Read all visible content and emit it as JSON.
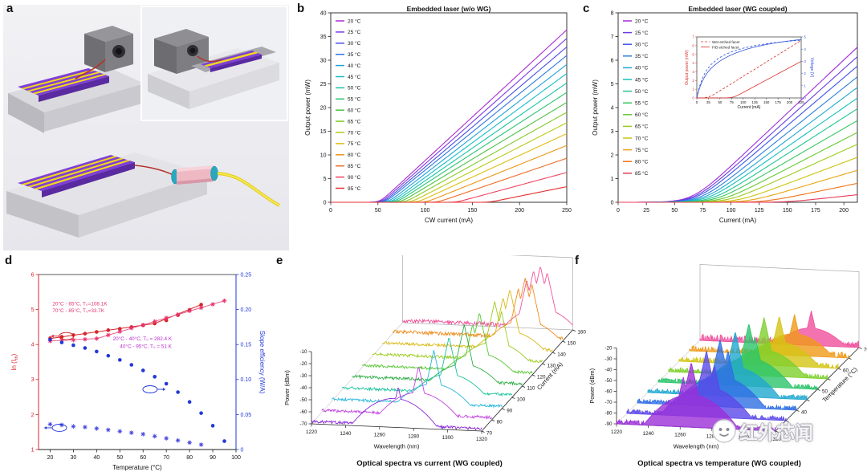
{
  "panels": {
    "a": {
      "label": "a",
      "description": "3D schematic: embedded laser chips, photodetector blocks and lensed-fiber coupling"
    },
    "b": {
      "label": "b",
      "title": "Embedded laser (w/o WG)"
    },
    "c": {
      "label": "c",
      "title": "Embedded laser (WG coupled)"
    },
    "d": {
      "label": "d"
    },
    "e": {
      "label": "e",
      "caption": "Optical spectra vs current (WG coupled)"
    },
    "f": {
      "label": "f",
      "caption": "Optical spectra vs temperature (WG coupled)"
    }
  },
  "watermark": {
    "text": "红外芯闻"
  },
  "chart_data": [
    {
      "panel": "b",
      "type": "line",
      "title": "Embedded laser (w/o WG)",
      "xlabel": "CW current (mA)",
      "ylabel": "Output power (mW)",
      "xlim": [
        0,
        250
      ],
      "ylim": [
        0,
        40
      ],
      "xticks": [
        0,
        50,
        100,
        150,
        200,
        250
      ],
      "yticks": [
        0,
        5,
        10,
        15,
        20,
        25,
        30,
        35,
        40
      ],
      "legend_position": "top-left",
      "knee_w": 3,
      "series": [
        {
          "name": "20 °C",
          "color": "#ab2ad2",
          "threshold_mA": 52,
          "p_at_max_mW": 36.4
        },
        {
          "name": "25 °C",
          "color": "#7c3ce2",
          "threshold_mA": 54,
          "p_at_max_mW": 34.6
        },
        {
          "name": "30 °C",
          "color": "#4a50e6",
          "threshold_mA": 56,
          "p_at_max_mW": 32.8
        },
        {
          "name": "35 °C",
          "color": "#2e77e0",
          "threshold_mA": 58,
          "p_at_max_mW": 31.0
        },
        {
          "name": "40 °C",
          "color": "#20a0d6",
          "threshold_mA": 61,
          "p_at_max_mW": 29.1
        },
        {
          "name": "45 °C",
          "color": "#18bcc8",
          "threshold_mA": 64,
          "p_at_max_mW": 27.2
        },
        {
          "name": "50 °C",
          "color": "#1ac4a6",
          "threshold_mA": 67,
          "p_at_max_mW": 25.2
        },
        {
          "name": "55 °C",
          "color": "#2cc474",
          "threshold_mA": 70,
          "p_at_max_mW": 23.2
        },
        {
          "name": "60 °C",
          "color": "#4cc248",
          "threshold_mA": 74,
          "p_at_max_mW": 21.1
        },
        {
          "name": "65 °C",
          "color": "#84ca2a",
          "threshold_mA": 79,
          "p_at_max_mW": 19.0
        },
        {
          "name": "70 °C",
          "color": "#b8ca16",
          "threshold_mA": 85,
          "p_at_max_mW": 16.8
        },
        {
          "name": "75 °C",
          "color": "#e0bc10",
          "threshold_mA": 92,
          "p_at_max_mW": 14.5
        },
        {
          "name": "80 °C",
          "color": "#eb9616",
          "threshold_mA": 101,
          "p_at_max_mW": 12.0
        },
        {
          "name": "85 °C",
          "color": "#f06e28",
          "threshold_mA": 113,
          "p_at_max_mW": 9.3
        },
        {
          "name": "90 °C",
          "color": "#ee4560",
          "threshold_mA": 133,
          "p_at_max_mW": 6.3
        },
        {
          "name": "95 °C",
          "color": "#e62e2e",
          "threshold_mA": 168,
          "p_at_max_mW": 3.3
        }
      ]
    },
    {
      "panel": "c",
      "type": "line",
      "title": "Embedded laser (WG coupled)",
      "xlabel": "Current (mA)",
      "ylabel": "Output power (mW)",
      "xlim": [
        0,
        212
      ],
      "ylim": [
        0,
        8
      ],
      "xticks": [
        0,
        25,
        50,
        75,
        100,
        125,
        150,
        175,
        200
      ],
      "yticks": [
        0,
        1,
        2,
        3,
        4,
        5,
        6,
        7,
        8
      ],
      "legend_position": "top-left",
      "knee_w": 9,
      "series": [
        {
          "name": "20 °C",
          "color": "#a02ad8",
          "threshold_mA": 66,
          "p_at_max_mW": 6.55
        },
        {
          "name": "25 °C",
          "color": "#6a3ce4",
          "threshold_mA": 68,
          "p_at_max_mW": 6.15
        },
        {
          "name": "30 °C",
          "color": "#3e55e8",
          "threshold_mA": 70,
          "p_at_max_mW": 5.75
        },
        {
          "name": "35 °C",
          "color": "#2a80dc",
          "threshold_mA": 73,
          "p_at_max_mW": 5.3
        },
        {
          "name": "40 °C",
          "color": "#1ea8d0",
          "threshold_mA": 76,
          "p_at_max_mW": 4.85
        },
        {
          "name": "45 °C",
          "color": "#17c0bc",
          "threshold_mA": 79,
          "p_at_max_mW": 4.4
        },
        {
          "name": "50 °C",
          "color": "#20c492",
          "threshold_mA": 83,
          "p_at_max_mW": 3.95
        },
        {
          "name": "55 °C",
          "color": "#38c65e",
          "threshold_mA": 87,
          "p_at_max_mW": 3.45
        },
        {
          "name": "60 °C",
          "color": "#64ca34",
          "threshold_mA": 92,
          "p_at_max_mW": 2.95
        },
        {
          "name": "65 °C",
          "color": "#9ccc1c",
          "threshold_mA": 98,
          "p_at_max_mW": 2.45
        },
        {
          "name": "70 °C",
          "color": "#ccc410",
          "threshold_mA": 106,
          "p_at_max_mW": 1.9
        },
        {
          "name": "75 °C",
          "color": "#e8a40e",
          "threshold_mA": 116,
          "p_at_max_mW": 1.35
        },
        {
          "name": "80 °C",
          "color": "#ee7418",
          "threshold_mA": 130,
          "p_at_max_mW": 0.8
        },
        {
          "name": "85 °C",
          "color": "#e83a58",
          "threshold_mA": 150,
          "p_at_max_mW": 0.32
        }
      ]
    },
    {
      "panel": "c_inset",
      "type": "line",
      "xlabel": "Current (mA)",
      "ylabel_left": "Output power (mW)",
      "ylabel_right": "Voltage (V)",
      "xlim": [
        0,
        225
      ],
      "ylim_left": [
        0,
        7
      ],
      "ylim_right": [
        0,
        5
      ],
      "power_color": "#d8302c",
      "voltage_color": "#3352d8",
      "legend": [
        {
          "label": "Wet etched facet",
          "style": "dashed"
        },
        {
          "label": "FIB etched facet",
          "style": "solid"
        }
      ],
      "curves": [
        {
          "name": "Wet etched facet power",
          "axis": "left",
          "style": "dashed",
          "threshold_mA": 25,
          "p_at_225_mW": 6.6
        },
        {
          "name": "FIB etched facet power",
          "axis": "left",
          "style": "solid",
          "threshold_mA": 78,
          "p_at_225_mW": 4.2
        },
        {
          "name": "Wet etched facet voltage",
          "axis": "right",
          "style": "dashed",
          "v_sat": 4.6,
          "i_half": 45
        },
        {
          "name": "FIB etched facet voltage",
          "axis": "right",
          "style": "solid",
          "v_sat": 5.1,
          "i_half": 70
        }
      ]
    },
    {
      "panel": "d",
      "type": "scatter",
      "xlabel": "Temperature (°C)",
      "ylabel_left": "ln (Ith)",
      "ylabel_right": "Slope efficiency (W/A)",
      "xlim": [
        15,
        100
      ],
      "ylim_left": [
        1,
        6
      ],
      "ylim_right": [
        0,
        0.25
      ],
      "xticks": [
        20,
        30,
        40,
        50,
        60,
        70,
        80,
        90,
        100
      ],
      "left_ticks": [
        1,
        2,
        3,
        4,
        5,
        6
      ],
      "right_ticks": [
        0,
        0.05,
        0.1,
        0.15,
        0.2,
        0.25
      ],
      "right_tick_labels": [
        "0",
        "0.05",
        "0.10",
        "0.15",
        "0.20",
        "0.25"
      ],
      "left_color": "#d8242c",
      "right_color": "#2238d8",
      "ln_circles": {
        "color": "#d42428",
        "temps": [
          20,
          25,
          30,
          35,
          40,
          45,
          50,
          55,
          60,
          65,
          70,
          75,
          80,
          85
        ],
        "values": [
          4.18,
          4.22,
          4.27,
          4.31,
          4.36,
          4.41,
          4.45,
          4.5,
          4.55,
          4.6,
          4.69,
          4.84,
          4.99,
          5.14
        ]
      },
      "ln_stars": {
        "color": "#e8356e",
        "temps": [
          20,
          25,
          30,
          35,
          40,
          45,
          50,
          55,
          60,
          65,
          70,
          75,
          80,
          85,
          90,
          95
        ],
        "values": [
          4.1,
          4.12,
          4.13,
          4.15,
          4.17,
          4.27,
          4.37,
          4.47,
          4.56,
          4.66,
          4.76,
          4.86,
          4.96,
          5.05,
          5.15,
          5.25
        ]
      },
      "se_circles": {
        "color": "#2238d8",
        "temps": [
          20,
          25,
          30,
          35,
          40,
          45,
          50,
          55,
          60,
          65,
          70,
          75,
          80,
          85,
          90,
          95
        ],
        "values": [
          0.157,
          0.153,
          0.149,
          0.145,
          0.14,
          0.134,
          0.128,
          0.121,
          0.113,
          0.104,
          0.094,
          0.082,
          0.068,
          0.052,
          0.034,
          0.012
        ]
      },
      "se_stars": {
        "color": "#4848e0",
        "temps": [
          20,
          25,
          30,
          35,
          40,
          45,
          50,
          55,
          60,
          65,
          70,
          75,
          80,
          85
        ],
        "values": [
          0.036,
          0.035,
          0.033,
          0.032,
          0.03,
          0.028,
          0.026,
          0.024,
          0.022,
          0.019,
          0.016,
          0.013,
          0.01,
          0.007
        ]
      },
      "trend_circles": {
        "color": "#d42428",
        "points": [
          [
            20,
            4.17
          ],
          [
            65,
            4.6
          ],
          [
            85,
            5.14
          ]
        ]
      },
      "trend_stars": {
        "color": "#e8608c",
        "points": [
          [
            20,
            4.1
          ],
          [
            40,
            4.17
          ],
          [
            95,
            5.25
          ]
        ]
      },
      "annotations": [
        {
          "text": "20°C - 65°C, T₀=108.1K",
          "x": 21,
          "y": 5.12,
          "color": "#e8356e"
        },
        {
          "text": "70°C - 85°C, T₀=33.7K",
          "x": 21,
          "y": 4.92,
          "color": "#e8356e"
        },
        {
          "text": "20°C - 40°C, T₀ = 282.4 K",
          "x": 47,
          "y": 4.12,
          "color": "#bf2ad0"
        },
        {
          "text": "40°C - 95°C, T₀ = 51 K",
          "x": 50,
          "y": 3.9,
          "color": "#bf2ad0"
        }
      ],
      "indicators": [
        {
          "x": 27,
          "y": 4.24,
          "color": "#d42428",
          "dir": -1
        },
        {
          "x": 63,
          "y": 2.72,
          "color": "#2238d8",
          "dir": 1
        },
        {
          "x": 24,
          "y": 1.62,
          "color": "#2238d8",
          "dir": -1
        }
      ]
    },
    {
      "panel": "e",
      "type": "line",
      "subtype": "waterfall3d",
      "caption": "Optical spectra vs current (WG coupled)",
      "xlabel": "Wavelength (nm)",
      "ylabel": "Power (dBm)",
      "zlabel": "Current (mA)",
      "x_range": [
        1220,
        1320
      ],
      "x_ticks": [
        1220,
        1240,
        1260,
        1280,
        1300,
        1320
      ],
      "y_ticks": [
        -70,
        -60,
        -50,
        -40,
        -30,
        -20,
        -10
      ],
      "noise_floor_dbm": -68,
      "series": [
        {
          "current": 70,
          "color": "#8c2ad8",
          "hump": {
            "nm": 1269,
            "dbm": -46
          },
          "peaks": [
            {
              "nm": 1271,
              "dbm": -36
            }
          ]
        },
        {
          "current": 80,
          "color": "#c244e0",
          "hump": {
            "nm": 1277,
            "dbm": -50
          },
          "peaks": [
            {
              "nm": 1277,
              "dbm": -28
            }
          ]
        },
        {
          "current": 90,
          "color": "#26b6dc",
          "hump": {
            "nm": 1280,
            "dbm": -52
          },
          "peaks": [
            {
              "nm": 1280,
              "dbm": -24
            }
          ]
        },
        {
          "current": 100,
          "color": "#1cc49c",
          "hump": {
            "nm": 1283,
            "dbm": -53
          },
          "peaks": [
            {
              "nm": 1283,
              "dbm": -22
            }
          ]
        },
        {
          "current": 110,
          "color": "#2fae46",
          "hump": {
            "nm": 1286,
            "dbm": -54
          },
          "peaks": [
            {
              "nm": 1286,
              "dbm": -21
            }
          ]
        },
        {
          "current": 120,
          "color": "#56c632",
          "hump": {
            "nm": 1289,
            "dbm": -54
          },
          "peaks": [
            {
              "nm": 1289,
              "dbm": -20
            },
            {
              "nm": 1285,
              "dbm": -30
            }
          ]
        },
        {
          "current": 130,
          "color": "#9ccc1e",
          "hump": {
            "nm": 1292,
            "dbm": -54
          },
          "peaks": [
            {
              "nm": 1292,
              "dbm": -20
            },
            {
              "nm": 1296,
              "dbm": -28
            }
          ]
        },
        {
          "current": 140,
          "color": "#d8b812",
          "hump": {
            "nm": 1295,
            "dbm": -54
          },
          "peaks": [
            {
              "nm": 1295,
              "dbm": -19
            },
            {
              "nm": 1291,
              "dbm": -26
            }
          ]
        },
        {
          "current": 150,
          "color": "#ee8c1a",
          "hump": {
            "nm": 1298,
            "dbm": -54
          },
          "noise_mult": 1.25,
          "peaks": [
            {
              "nm": 1298,
              "dbm": -19
            },
            {
              "nm": 1302,
              "dbm": -24
            },
            {
              "nm": 1294,
              "dbm": -28
            }
          ]
        },
        {
          "current": 160,
          "color": "#f0549c",
          "hump": {
            "nm": 1301,
            "dbm": -53
          },
          "noise_mult": 1.45,
          "peaks": [
            {
              "nm": 1301,
              "dbm": -18
            },
            {
              "nm": 1297,
              "dbm": -22
            },
            {
              "nm": 1305,
              "dbm": -23
            },
            {
              "nm": 1293,
              "dbm": -30
            }
          ]
        }
      ]
    },
    {
      "panel": "f",
      "type": "line",
      "subtype": "waterfall3d",
      "caption": "Optical spectra vs temperature (WG coupled)",
      "xlabel": "Wavelength (nm)",
      "ylabel": "Power (dBm)",
      "zlabel": "Temperature (°C)",
      "x_range": [
        1220,
        1320
      ],
      "x_ticks": [
        1220,
        1240,
        1260,
        1280,
        1300,
        1320
      ],
      "y_ticks": [
        -90,
        -80,
        -70,
        -60,
        -50,
        -40,
        -30,
        -20
      ],
      "noise_floor_dbm": -88,
      "series": [
        {
          "temp": 30,
          "color": "#9a30d8",
          "hump": {
            "nm": 1267,
            "dbm": -60
          },
          "peaks": [
            {
              "nm": 1267,
              "dbm": -30
            },
            {
              "nm": 1262,
              "dbm": -44
            }
          ]
        },
        {
          "temp": 35,
          "color": "#5a48e8",
          "hump": {
            "nm": 1270,
            "dbm": -62
          },
          "peaks": [
            {
              "nm": 1270,
              "dbm": -29
            },
            {
              "nm": 1275,
              "dbm": -42
            }
          ]
        },
        {
          "temp": 40,
          "color": "#2f6ee4",
          "hump": {
            "nm": 1272,
            "dbm": -62
          },
          "peaks": [
            {
              "nm": 1272,
              "dbm": -28
            },
            {
              "nm": 1277,
              "dbm": -38
            }
          ]
        },
        {
          "temp": 45,
          "color": "#21a8d0",
          "hump": {
            "nm": 1275,
            "dbm": -63
          },
          "peaks": [
            {
              "nm": 1275,
              "dbm": -30
            }
          ]
        },
        {
          "temp": 50,
          "color": "#2cc46a",
          "hump": {
            "nm": 1277,
            "dbm": -64
          },
          "peaks": [
            {
              "nm": 1277,
              "dbm": -32
            },
            {
              "nm": 1281,
              "dbm": -44
            }
          ]
        },
        {
          "temp": 55,
          "color": "#7ed02c",
          "hump": {
            "nm": 1280,
            "dbm": -66
          },
          "peaks": [
            {
              "nm": 1280,
              "dbm": -36
            }
          ]
        },
        {
          "temp": 60,
          "color": "#d4c414",
          "hump": {
            "nm": 1283,
            "dbm": -68
          },
          "noise_mult": 1.2,
          "peaks": [
            {
              "nm": 1283,
              "dbm": -44
            }
          ]
        },
        {
          "temp": 65,
          "color": "#f09a18",
          "hump": {
            "nm": 1286,
            "dbm": -70
          },
          "noise_mult": 1.5,
          "peaks": [
            {
              "nm": 1286,
              "dbm": -52
            }
          ]
        },
        {
          "temp": 70,
          "color": "#f0509c",
          "hump": {
            "nm": 1290,
            "dbm": -74
          },
          "noise_mult": 1.8,
          "peaks": [
            {
              "nm": 1290,
              "dbm": -58
            }
          ]
        }
      ]
    }
  ]
}
